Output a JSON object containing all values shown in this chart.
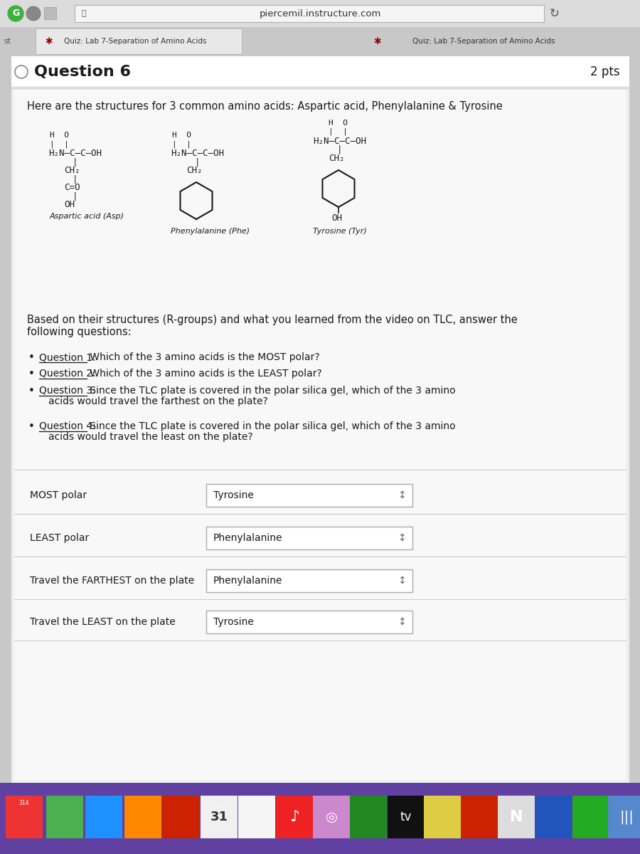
{
  "browser_bar_text": "piercemil.instructure.com",
  "tab_text": "Quiz: Lab 7-Separation of Amino Acids",
  "question_number": "Question 6",
  "pts": "2 pts",
  "intro_text": "Here are the structures for 3 common amino acids: Aspartic acid, Phenylalanine & Tyrosine",
  "body_text": "Based on their structures (R-groups) and what you learned from the video on TLC, answer the\nfollowing questions:",
  "questions": [
    [
      "Question 1:",
      " Which of the 3 amino acids is the MOST polar?"
    ],
    [
      "Question 2:",
      " Which of the 3 amino acids is the LEAST polar?"
    ],
    [
      "Question 3:",
      " Since the TLC plate is covered in the polar silica gel, which of the 3 amino\nacids would travel the farthest on the plate?"
    ],
    [
      "Question 4:",
      " Since the TLC plate is covered in the polar silica gel, which of the 3 amino\nacids would travel the least on the plate?"
    ]
  ],
  "answer_labels": [
    "MOST polar",
    "LEAST polar",
    "Travel the FARTHEST on the plate",
    "Travel the LEAST on the plate"
  ],
  "answer_values": [
    "Tyrosine",
    "Phenylalanine",
    "Phenylalanine",
    "Tyrosine"
  ],
  "bg_gray": "#c8c8c8",
  "content_bg": "#f0efef",
  "white": "#ffffff",
  "border_light": "#cccccc",
  "text_dark": "#1a1a1a",
  "text_mid": "#444444",
  "url_bar_bg": "#f5f5f5",
  "tab_active_bg": "#e8e8e8",
  "tab_bar_bg": "#c8c8c8",
  "dropdown_border": "#aaaaaa",
  "taskbar_bg": "#5a3a8a",
  "header_line_color": "#dddddd"
}
